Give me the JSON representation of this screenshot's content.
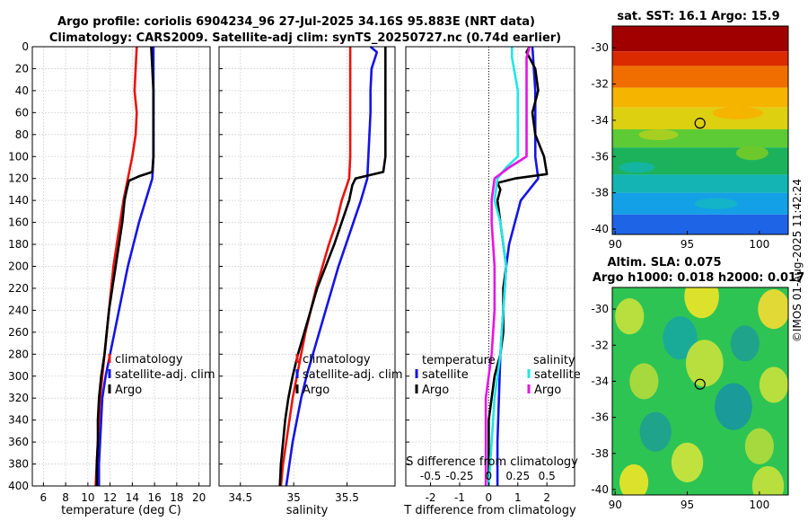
{
  "title": {
    "line1": "Argo profile: coriolis 6904234_96 27-Jul-2025 34.16S 95.883E (NRT data)",
    "line2": "Climatology: CARS2009. Satellite-adj clim: synTS_20250727.nc (0.74d earlier)"
  },
  "credit": "©IMOS 01-Aug-2025 11:42:24",
  "colors": {
    "climatology": "#e8140f",
    "satellite": "#1414e6",
    "argo": "#000000",
    "sal_satellite": "#22e6e6",
    "sal_argo": "#e614e6",
    "grid": "#c8c8c8"
  },
  "chart_data": [
    {
      "type": "line",
      "title": "",
      "xlabel": "temperature (deg C)",
      "ylabel": "",
      "xlim": [
        5,
        21
      ],
      "ylim": [
        400,
        0
      ],
      "xticks": [
        6,
        8,
        10,
        12,
        14,
        16,
        18,
        20
      ],
      "yticks": [
        0,
        20,
        40,
        60,
        80,
        100,
        120,
        140,
        160,
        180,
        200,
        220,
        240,
        260,
        280,
        300,
        320,
        340,
        360,
        380,
        400
      ],
      "grid": true,
      "legend": {
        "placement": "lower-right",
        "entries": [
          "climatology",
          "satellite-adj. clim",
          "Argo"
        ]
      },
      "series": [
        {
          "name": "climatology",
          "color": "#e8140f",
          "depth": [
            0,
            20,
            40,
            60,
            80,
            100,
            120,
            140,
            160,
            180,
            200,
            220,
            240,
            260,
            280,
            300,
            320,
            340,
            360,
            380,
            400
          ],
          "values": [
            14.4,
            14.3,
            14.2,
            14.4,
            14.3,
            14.0,
            13.6,
            13.2,
            12.9,
            12.6,
            12.3,
            12.1,
            11.9,
            11.7,
            11.5,
            11.3,
            11.1,
            11.0,
            10.9,
            10.8,
            10.7
          ]
        },
        {
          "name": "satellite-adj. clim",
          "color": "#1414e6",
          "depth": [
            0,
            20,
            40,
            60,
            80,
            100,
            120,
            140,
            160,
            180,
            200,
            220,
            240,
            260,
            280,
            300,
            320,
            340,
            360,
            380,
            400
          ],
          "values": [
            15.9,
            15.9,
            15.9,
            15.9,
            15.9,
            15.9,
            15.8,
            15.2,
            14.6,
            14.1,
            13.6,
            13.2,
            12.8,
            12.4,
            12.0,
            11.6,
            11.3,
            11.2,
            11.1,
            11.0,
            11.0
          ]
        },
        {
          "name": "Argo",
          "color": "#000000",
          "depth": [
            0,
            20,
            40,
            60,
            80,
            100,
            114,
            118,
            122,
            130,
            140,
            160,
            180,
            200,
            220,
            240,
            260,
            280,
            300,
            320,
            340,
            360,
            380,
            400
          ],
          "values": [
            15.7,
            15.8,
            15.9,
            15.9,
            15.9,
            15.9,
            15.8,
            14.6,
            13.7,
            13.5,
            13.3,
            13.1,
            12.8,
            12.5,
            12.2,
            11.9,
            11.7,
            11.5,
            11.2,
            11.0,
            10.9,
            10.9,
            10.8,
            10.8
          ]
        }
      ]
    },
    {
      "type": "line",
      "title": "",
      "xlabel": "salinity",
      "ylabel": "",
      "xlim": [
        34.3,
        35.95
      ],
      "ylim": [
        400,
        0
      ],
      "xticks": [
        34.5,
        35,
        35.5
      ],
      "grid": true,
      "legend": {
        "placement": "lower-right",
        "entries": [
          "climatology",
          "satellite-adj. clim",
          "Argo"
        ]
      },
      "series": [
        {
          "name": "climatology",
          "color": "#e8140f",
          "depth": [
            0,
            20,
            40,
            60,
            80,
            100,
            120,
            140,
            160,
            180,
            200,
            220,
            240,
            260,
            280,
            300,
            320,
            340,
            360,
            380,
            400
          ],
          "values": [
            35.53,
            35.53,
            35.53,
            35.53,
            35.53,
            35.53,
            35.52,
            35.45,
            35.4,
            35.33,
            35.27,
            35.21,
            35.16,
            35.11,
            35.07,
            35.03,
            34.99,
            34.96,
            34.93,
            34.9,
            34.88
          ]
        },
        {
          "name": "satellite-adj. clim",
          "color": "#1414e6",
          "depth": [
            0,
            5,
            20,
            40,
            60,
            80,
            100,
            120,
            140,
            160,
            180,
            200,
            220,
            240,
            260,
            280,
            300,
            320,
            340,
            360,
            380,
            400
          ],
          "values": [
            35.72,
            35.78,
            35.73,
            35.72,
            35.72,
            35.71,
            35.7,
            35.69,
            35.63,
            35.56,
            35.49,
            35.42,
            35.36,
            35.3,
            35.24,
            35.18,
            35.12,
            35.07,
            35.03,
            34.99,
            34.96,
            34.93
          ]
        },
        {
          "name": "Argo",
          "color": "#000000",
          "depth": [
            0,
            20,
            40,
            60,
            80,
            100,
            114,
            120,
            126,
            140,
            160,
            180,
            200,
            220,
            240,
            260,
            280,
            300,
            320,
            340,
            360,
            380,
            400
          ],
          "values": [
            35.86,
            35.86,
            35.86,
            35.86,
            35.86,
            35.86,
            35.84,
            35.58,
            35.55,
            35.52,
            35.45,
            35.38,
            35.3,
            35.22,
            35.16,
            35.1,
            35.04,
            34.99,
            34.95,
            34.92,
            34.9,
            34.88,
            34.87
          ]
        }
      ]
    },
    {
      "type": "line",
      "title": "",
      "xlabel": "T difference from climatology",
      "xlabel_top": "S difference from climatology",
      "ylabel": "",
      "xlim": [
        -2.85,
        2.95
      ],
      "ylim": [
        400,
        0
      ],
      "xticks": [
        -2,
        -1,
        0,
        1,
        2
      ],
      "xticks_top": [
        "-0.5",
        "-0.25",
        "0",
        "0.25",
        "0.5"
      ],
      "xticks_top_pos": [
        -2,
        -1,
        0,
        1,
        2
      ],
      "grid": true,
      "legend": [
        {
          "heading": "temperature",
          "entries": [
            "satellite",
            "Argo"
          ]
        },
        {
          "heading": "salinity",
          "entries": [
            "satellite",
            "Argo"
          ]
        }
      ],
      "series": [
        {
          "name": "temperature satellite",
          "color": "#1414e6",
          "depth": [
            0,
            40,
            80,
            100,
            120,
            140,
            160,
            180,
            200,
            240,
            280,
            320,
            360,
            400
          ],
          "values": [
            1.5,
            1.6,
            1.6,
            1.6,
            1.7,
            1.1,
            0.9,
            0.7,
            0.6,
            0.5,
            0.4,
            0.35,
            0.3,
            0.3
          ]
        },
        {
          "name": "temperature Argo",
          "color": "#000000",
          "depth": [
            0,
            5,
            20,
            40,
            60,
            80,
            100,
            116,
            120,
            124,
            130,
            140,
            160,
            180,
            200,
            220,
            240,
            260,
            280,
            300,
            320,
            340,
            360,
            380,
            400
          ],
          "values": [
            1.4,
            1.3,
            1.6,
            1.7,
            1.5,
            1.6,
            1.9,
            2.0,
            0.9,
            0.3,
            0.4,
            0.3,
            0.4,
            0.5,
            0.6,
            0.5,
            0.5,
            0.5,
            0.4,
            0.2,
            0.1,
            0.0,
            0.0,
            0.0,
            0.0
          ]
        },
        {
          "name": "salinity satellite",
          "color": "#22e6e6",
          "depth": [
            0,
            10,
            40,
            80,
            100,
            110,
            120,
            140,
            160,
            200,
            240,
            280,
            300,
            320,
            360,
            400
          ],
          "values": [
            0.8,
            0.8,
            1.0,
            1.0,
            1.0,
            0.6,
            0.3,
            0.2,
            0.4,
            0.6,
            0.5,
            0.4,
            0.3,
            0.2,
            0.1,
            0.0
          ]
        },
        {
          "name": "salinity Argo",
          "color": "#e614e6",
          "depth": [
            0,
            10,
            40,
            80,
            100,
            110,
            120,
            140,
            160,
            200,
            240,
            280,
            300,
            320,
            360,
            400
          ],
          "values": [
            1.4,
            1.3,
            1.3,
            1.3,
            1.3,
            0.7,
            0.2,
            0.1,
            0.1,
            0.2,
            0.2,
            0.1,
            0.0,
            -0.1,
            -0.1,
            -0.1
          ]
        }
      ]
    },
    {
      "type": "heatmap",
      "title": "sat. SST: 16.1 Argo: 15.9",
      "xlim": [
        89.8,
        102.0
      ],
      "ylim": [
        -40.3,
        -28.8
      ],
      "xticks": [
        90,
        95,
        100
      ],
      "yticks": [
        -30,
        -32,
        -34,
        -36,
        -38,
        -40
      ],
      "marker": {
        "lon": 95.883,
        "lat": -34.16
      },
      "bands": [
        {
          "lat_from": -28.8,
          "lat_to": -30.2,
          "color": "#a00000"
        },
        {
          "lat_from": -30.2,
          "lat_to": -31.0,
          "color": "#dc2a00"
        },
        {
          "lat_from": -31.0,
          "lat_to": -32.2,
          "color": "#f06d00"
        },
        {
          "lat_from": -32.2,
          "lat_to": -33.3,
          "color": "#f5b400"
        },
        {
          "lat_from": -33.3,
          "lat_to": -34.5,
          "color": "#dcd010"
        },
        {
          "lat_from": -34.5,
          "lat_to": -35.5,
          "color": "#5ccb36"
        },
        {
          "lat_from": -35.5,
          "lat_to": -37.0,
          "color": "#1cb25c"
        },
        {
          "lat_from": -37.0,
          "lat_to": -38.0,
          "color": "#14b4b4"
        },
        {
          "lat_from": -38.0,
          "lat_to": -39.2,
          "color": "#14a0e6"
        },
        {
          "lat_from": -39.2,
          "lat_to": -40.3,
          "color": "#1e64e6"
        }
      ]
    },
    {
      "type": "heatmap",
      "title": "Altim. SLA: 0.075",
      "subtitle": "Argo h1000: 0.018 h2000: 0.017",
      "xlim": [
        89.8,
        102.0
      ],
      "ylim": [
        -40.3,
        -28.8
      ],
      "xticks": [
        90,
        95,
        100
      ],
      "yticks": [
        -30,
        -32,
        -34,
        -36,
        -38,
        -40
      ],
      "marker": {
        "lon": 95.883,
        "lat": -34.16
      },
      "base_color": "#2ec454",
      "blobs": [
        {
          "lon": 91.0,
          "lat": -30.4,
          "r": 1.0,
          "color": "#c8e23c"
        },
        {
          "lon": 96.0,
          "lat": -29.3,
          "r": 1.2,
          "color": "#f0e628"
        },
        {
          "lon": 101.0,
          "lat": -30.0,
          "r": 1.1,
          "color": "#f5dc32"
        },
        {
          "lon": 94.5,
          "lat": -31.6,
          "r": 1.2,
          "color": "#18a8a0"
        },
        {
          "lon": 99.0,
          "lat": -31.9,
          "r": 1.0,
          "color": "#1ea090"
        },
        {
          "lon": 96.2,
          "lat": -33.0,
          "r": 1.3,
          "color": "#c8e23c"
        },
        {
          "lon": 92.0,
          "lat": -34.0,
          "r": 1.0,
          "color": "#b4dc3c"
        },
        {
          "lon": 101.0,
          "lat": -34.2,
          "r": 1.0,
          "color": "#c8e23c"
        },
        {
          "lon": 98.2,
          "lat": -35.4,
          "r": 1.3,
          "color": "#1896a0"
        },
        {
          "lon": 92.8,
          "lat": -36.8,
          "r": 1.1,
          "color": "#1ea090"
        },
        {
          "lon": 100.0,
          "lat": -37.6,
          "r": 1.0,
          "color": "#b4dc3c"
        },
        {
          "lon": 95.0,
          "lat": -38.5,
          "r": 1.1,
          "color": "#d2e63c"
        },
        {
          "lon": 91.3,
          "lat": -39.6,
          "r": 1.0,
          "color": "#f0e628"
        },
        {
          "lon": 100.6,
          "lat": -39.8,
          "r": 1.1,
          "color": "#c8e23c"
        }
      ]
    }
  ]
}
